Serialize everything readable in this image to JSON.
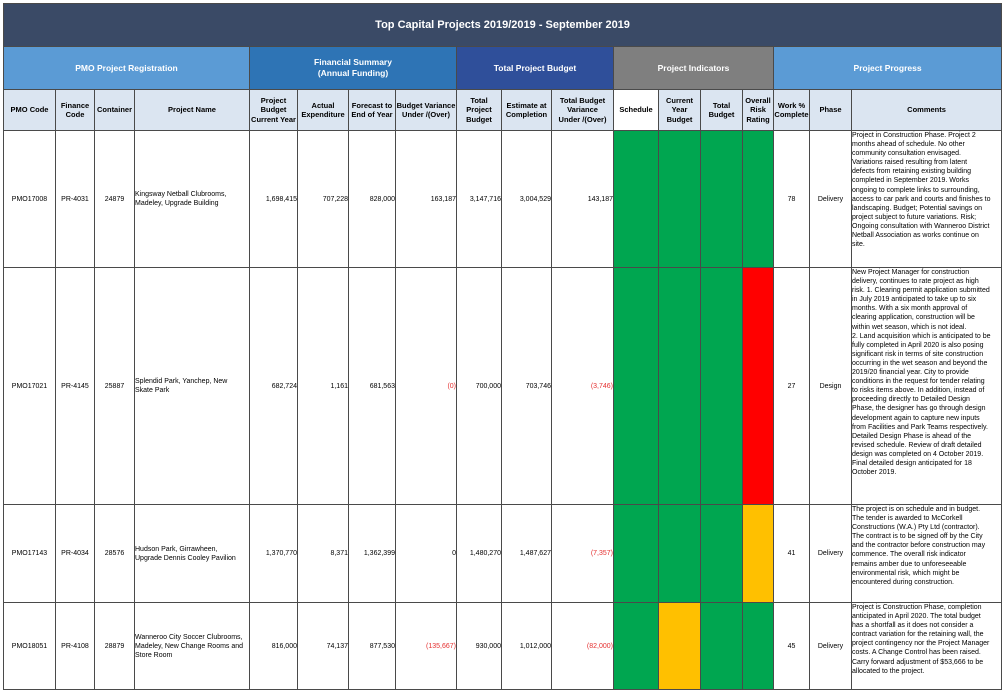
{
  "title": "Top Capital Projects 2019/2019 - September 2019",
  "groups": {
    "pmo": "PMO Project Registration",
    "financial_line1": "Financial Summary",
    "financial_line2": "(Annual Funding)",
    "total": "Total Project Budget",
    "indicators": "Project Indicators",
    "progress": "Project Progress"
  },
  "columns": {
    "pmo_code": "PMO Code",
    "finance_code_1": "Finance",
    "finance_code_2": "Code",
    "container": "Container",
    "project_name": "Project Name",
    "project_budget_1": "Project",
    "project_budget_2": "Budget",
    "project_budget_3": "Current Year",
    "actual_1": "Actual",
    "actual_2": "Expenditure",
    "forecast_1": "Forecast to",
    "forecast_2": "End of Year",
    "variance_1": "Budget Variance",
    "variance_2": "Under /(Over)",
    "total_budget_1": "Total Project",
    "total_budget_2": "Budget",
    "estimate_1": "Estimate at",
    "estimate_2": "Completion",
    "total_variance_1": "Total Budget",
    "total_variance_2": "Variance",
    "total_variance_3": "Under /(Over)",
    "schedule": "Schedule",
    "cy_budget_1": "Current",
    "cy_budget_2": "Year",
    "cy_budget_3": "Budget",
    "tot_budget_1": "Total",
    "tot_budget_2": "Budget",
    "risk_1": "Overall",
    "risk_2": "Risk",
    "risk_3": "Rating",
    "work_1": "Work %",
    "work_2": "Complete",
    "phase": "Phase",
    "comments": "Comments"
  },
  "colors": {
    "green": "#00a650",
    "red": "#ff0000",
    "amber": "#ffc000",
    "negative_text": "#e53030"
  },
  "rows": [
    {
      "pmo_code": "PMO17008",
      "finance_code": "PR-4031",
      "container": "24879",
      "name_1": "Kingsway Netball Clubrooms,",
      "name_2": "Madeley, Upgrade Building",
      "name_3": "",
      "budget_cy": "1,698,415",
      "actual": "707,228",
      "forecast": "828,000",
      "variance": "163,187",
      "total_budget": "3,147,716",
      "estimate": "3,004,529",
      "total_variance": "143,187",
      "schedule": "green",
      "cy_budget_status": "green",
      "total_budget_status": "green",
      "risk": "green",
      "work_pct": "78",
      "phase": "Delivery",
      "comment_lines": [
        "Project in Construction Phase. Project 2",
        "months ahead of schedule. No other",
        "community consultation envisaged.",
        "Variations raised resulting from latent",
        "defects from retaining existing building",
        "completed in September 2019. Works",
        "ongoing to complete links to surrounding,",
        "access to car park and courts and finishes to",
        "landscaping. Budget; Potential savings on",
        "project subject to future variations. Risk;",
        "Ongoing consultation with Wanneroo District",
        "Netball Association as works continue on",
        "site."
      ]
    },
    {
      "pmo_code": "PMO17021",
      "finance_code": "PR-4145",
      "container": "25887",
      "name_1": "Splendid Park, Yanchep, New",
      "name_2": "Skate Park",
      "name_3": "",
      "budget_cy": "682,724",
      "actual": "1,161",
      "forecast": "681,563",
      "variance": "(0)",
      "total_budget": "700,000",
      "estimate": "703,746",
      "total_variance": "(3,746)",
      "schedule": "green",
      "cy_budget_status": "green",
      "total_budget_status": "green",
      "risk": "red",
      "work_pct": "27",
      "phase": "Design",
      "comment_lines": [
        "New Project Manager for construction",
        "delivery, continues to rate project as high",
        "risk. 1. Clearing permit application submitted",
        "in July 2019 anticipated to take up to six",
        "months. With a six month approval of",
        "clearing application, construction will be",
        "within wet season, which is not ideal.",
        "2. Land acquisition which is anticipated to be",
        "fully completed in April 2020 is also posing",
        "significant risk in terms of site construction",
        "occurring in the wet season and beyond the",
        "2019/20 financial year. City to provide",
        "conditions in the request for tender relating",
        "to risks items above. In addition, instead of",
        "proceeding directly to Detailed Design",
        "Phase, the designer has go through design",
        "development again to capture new inputs",
        "from Facilities and Park Teams respectively.",
        "Detailed Design Phase is ahead of the",
        "revised schedule. Review of draft detailed",
        "design was completed on 4 October 2019.",
        "Final detailed design anticipated for 18",
        "October 2019."
      ]
    },
    {
      "pmo_code": "PMO17143",
      "finance_code": "PR-4034",
      "container": "28576",
      "name_1": "Hudson Park, Girrawheen,",
      "name_2": "Upgrade Dennis Cooley Pavilion",
      "name_3": "",
      "budget_cy": "1,370,770",
      "actual": "8,371",
      "forecast": "1,362,399",
      "variance": "0",
      "total_budget": "1,480,270",
      "estimate": "1,487,627",
      "total_variance": "(7,357)",
      "schedule": "green",
      "cy_budget_status": "green",
      "total_budget_status": "green",
      "risk": "amber",
      "work_pct": "41",
      "phase": "Delivery",
      "comment_lines": [
        "The project is on schedule and in budget.",
        "The tender is awarded to McCorkell",
        "Constructions (W.A.) Pty Ltd (contractor).",
        "The contract is to be signed off by the City",
        "and the contractor before construction may",
        "commence.  The  overall risk indicator",
        "remains amber due to unforeseeable",
        "environmental risk, which might be",
        "encountered during construction."
      ]
    },
    {
      "pmo_code": "PMO18051",
      "finance_code": "PR-4108",
      "container": "28879",
      "name_1": "Wanneroo City Soccer Clubrooms,",
      "name_2": "Madeley, New Change Rooms and",
      "name_3": "Store Room",
      "budget_cy": "816,000",
      "actual": "74,137",
      "forecast": "877,530",
      "variance": "(135,667)",
      "total_budget": "930,000",
      "estimate": "1,012,000",
      "total_variance": "(82,000)",
      "schedule": "green",
      "cy_budget_status": "amber",
      "total_budget_status": "green",
      "risk": "green",
      "work_pct": "45",
      "phase": "Delivery",
      "comment_lines": [
        "Project is Construction Phase, completion",
        "anticipated in April 2020. The total budget",
        "has a shortfall as it does not consider a",
        "contract variation for the retaining wall, the",
        "project contingency nor the Project Manager",
        "costs. A Change Control has been raised.",
        "Carry forward adjustment of $53,666 to be",
        "allocated to the project."
      ]
    }
  ]
}
